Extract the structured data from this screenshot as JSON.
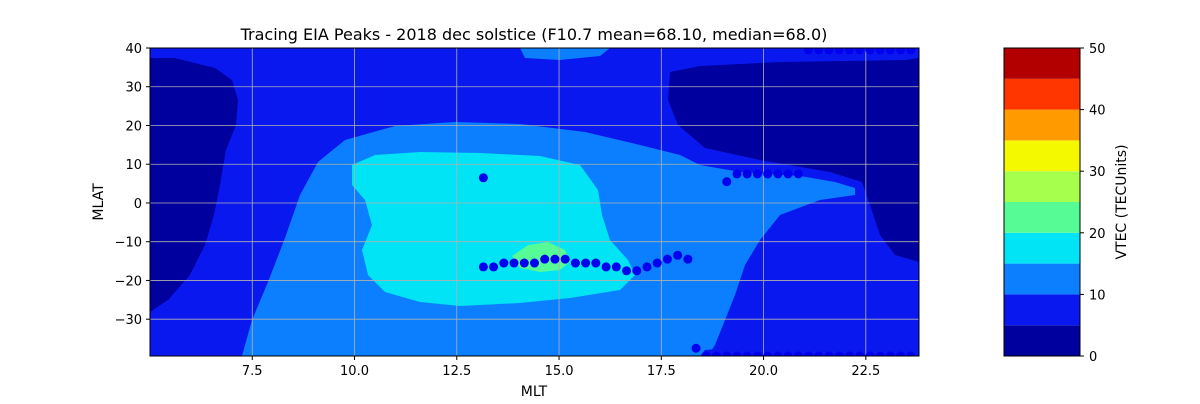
{
  "chart_data": {
    "type": "heatmap",
    "title": "Tracing EIA Peaks - 2018 dec solstice (F10.7 mean=68.10, median=68.0)",
    "xlabel": "MLT",
    "ylabel": "MLAT",
    "xlim": [
      5.0,
      23.8
    ],
    "ylim": [
      -39.5,
      40
    ],
    "x_ticks": [
      "7.5",
      "10.0",
      "12.5",
      "15.0",
      "17.5",
      "20.0",
      "22.5"
    ],
    "y_ticks": [
      "40",
      "30",
      "20",
      "10",
      "0",
      "−10",
      "−20",
      "−30"
    ],
    "grid": true,
    "colorbar": {
      "label": "VTEC (TECUnits)",
      "levels": [
        0,
        5,
        10,
        15,
        20,
        25,
        30,
        35,
        40,
        45,
        50
      ],
      "colors": [
        "#00009e",
        "#0a18f0",
        "#0b7fff",
        "#00e4f6",
        "#57fb96",
        "#a5ff4c",
        "#f5f900",
        "#ff9a00",
        "#ff3600",
        "#b20000"
      ],
      "ticks": [
        "50",
        "40",
        "30",
        "20",
        "10",
        "0"
      ]
    },
    "contour_regions": [
      {
        "level_min": 0,
        "level_max": 5,
        "description": "left edge and upper-right night sector"
      },
      {
        "level_min": 5,
        "level_max": 10,
        "description": "background"
      },
      {
        "level_min": 10,
        "level_max": 15,
        "description": "broad dayside enhancement"
      },
      {
        "level_min": 15,
        "level_max": 20,
        "description": "equatorial anomaly core"
      },
      {
        "level_min": 20,
        "level_max": 25,
        "description": "small peak near MLT 15, MLAT -14"
      }
    ],
    "peak_points": [
      {
        "x": 13.15,
        "y": 6.5
      },
      {
        "x": 13.15,
        "y": -16.5
      },
      {
        "x": 13.4,
        "y": -16.5
      },
      {
        "x": 13.65,
        "y": -15.5
      },
      {
        "x": 13.9,
        "y": -15.5
      },
      {
        "x": 14.15,
        "y": -15.5
      },
      {
        "x": 14.4,
        "y": -15.5
      },
      {
        "x": 14.65,
        "y": -14.5
      },
      {
        "x": 14.9,
        "y": -14.5
      },
      {
        "x": 15.15,
        "y": -14.5
      },
      {
        "x": 15.4,
        "y": -15.5
      },
      {
        "x": 15.65,
        "y": -15.5
      },
      {
        "x": 15.9,
        "y": -15.5
      },
      {
        "x": 16.15,
        "y": -16.5
      },
      {
        "x": 16.4,
        "y": -16.5
      },
      {
        "x": 16.65,
        "y": -17.5
      },
      {
        "x": 16.9,
        "y": -17.5
      },
      {
        "x": 17.15,
        "y": -16.5
      },
      {
        "x": 17.4,
        "y": -15.5
      },
      {
        "x": 17.65,
        "y": -14.5
      },
      {
        "x": 17.9,
        "y": -13.5
      },
      {
        "x": 18.15,
        "y": -14.5
      },
      {
        "x": 19.1,
        "y": 5.5
      },
      {
        "x": 19.35,
        "y": 7.5
      },
      {
        "x": 19.6,
        "y": 7.5
      },
      {
        "x": 19.85,
        "y": 7.5
      },
      {
        "x": 20.1,
        "y": 7.5
      },
      {
        "x": 20.35,
        "y": 7.5
      },
      {
        "x": 20.6,
        "y": 7.5
      },
      {
        "x": 20.85,
        "y": 7.5
      },
      {
        "x": 18.35,
        "y": -37.5
      },
      {
        "x": 18.6,
        "y": -39.5
      },
      {
        "x": 18.85,
        "y": -39.5
      },
      {
        "x": 19.1,
        "y": -39.5
      },
      {
        "x": 19.35,
        "y": -39.5
      },
      {
        "x": 19.6,
        "y": -39.5
      },
      {
        "x": 19.85,
        "y": -39.5
      },
      {
        "x": 20.1,
        "y": -39.5
      },
      {
        "x": 20.35,
        "y": -39.5
      },
      {
        "x": 20.6,
        "y": -39.5
      },
      {
        "x": 20.85,
        "y": -39.5
      },
      {
        "x": 21.1,
        "y": -39.5
      },
      {
        "x": 21.35,
        "y": -39.5
      },
      {
        "x": 21.6,
        "y": -39.5
      },
      {
        "x": 21.85,
        "y": -39.5
      },
      {
        "x": 22.1,
        "y": -39.5
      },
      {
        "x": 22.35,
        "y": -39.5
      },
      {
        "x": 22.6,
        "y": -39.5
      },
      {
        "x": 22.85,
        "y": -39.5
      },
      {
        "x": 23.1,
        "y": -39.5
      },
      {
        "x": 23.35,
        "y": -39.5
      },
      {
        "x": 23.6,
        "y": -39.5
      },
      {
        "x": 21.1,
        "y": 39.5
      },
      {
        "x": 21.35,
        "y": 39.5
      },
      {
        "x": 21.6,
        "y": 39.5
      },
      {
        "x": 21.85,
        "y": 39.5
      },
      {
        "x": 22.1,
        "y": 39.5
      },
      {
        "x": 22.35,
        "y": 39.5
      },
      {
        "x": 22.6,
        "y": 39.5
      },
      {
        "x": 22.85,
        "y": 39.5
      },
      {
        "x": 23.1,
        "y": 39.5
      },
      {
        "x": 23.35,
        "y": 39.5
      },
      {
        "x": 23.6,
        "y": 39.5
      }
    ],
    "marker_color": "#0000ee"
  }
}
